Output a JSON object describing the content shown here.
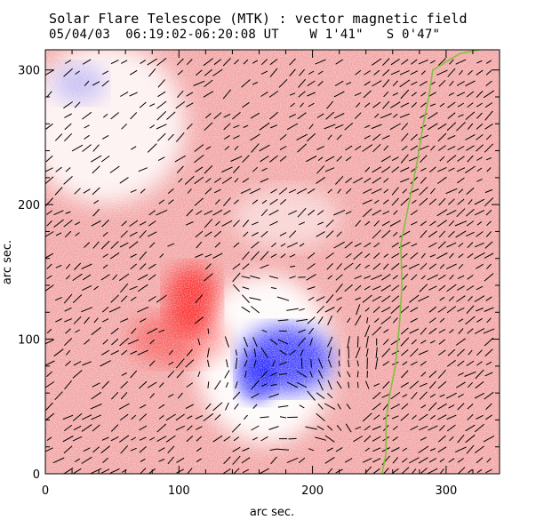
{
  "header": {
    "title": "Solar Flare Telescope (MTK) : vector magnetic field",
    "date": "05/04/03",
    "time_range": "06:19:02-06:20:08 UT",
    "position_w": "W 1'41\"",
    "position_s": "S 0'47\""
  },
  "chart_data": {
    "type": "heatmap",
    "title": "Solar Flare Telescope (MTK) : vector magnetic field",
    "xlabel": "arc sec.",
    "ylabel": "arc sec.",
    "xlim": [
      0,
      340
    ],
    "ylim": [
      0,
      315
    ],
    "xticks": [
      0,
      100,
      200,
      300
    ],
    "yticks": [
      0,
      100,
      200,
      300
    ],
    "xtick_labels": [
      "0",
      "100",
      "200",
      "300"
    ],
    "ytick_labels": [
      "0",
      "100",
      "200",
      "300"
    ],
    "colors": {
      "positive_polarity": "#ff0000",
      "negative_polarity": "#0000ff",
      "background": "#f0a0a0",
      "neutral_line": "#80c040",
      "vectors": "#000000"
    },
    "regions": [
      {
        "name": "positive core",
        "polarity": "positive",
        "center": [
          110,
          130
        ],
        "strength": 0.9
      },
      {
        "name": "positive tail",
        "polarity": "positive",
        "center": [
          100,
          100
        ],
        "strength": 0.5
      },
      {
        "name": "negative core",
        "polarity": "negative",
        "center": [
          180,
          85
        ],
        "strength": 0.95
      },
      {
        "name": "negative upper",
        "polarity": "negative",
        "center": [
          25,
          290
        ],
        "strength": 0.3
      }
    ],
    "neutral_line": [
      [
        252,
        0
      ],
      [
        255,
        15
      ],
      [
        255,
        40
      ],
      [
        258,
        60
      ],
      [
        262,
        80
      ],
      [
        265,
        110
      ],
      [
        267,
        140
      ],
      [
        266,
        170
      ],
      [
        272,
        200
      ],
      [
        278,
        230
      ],
      [
        283,
        260
      ],
      [
        287,
        280
      ],
      [
        290,
        300
      ],
      [
        310,
        312
      ],
      [
        325,
        315
      ]
    ]
  }
}
